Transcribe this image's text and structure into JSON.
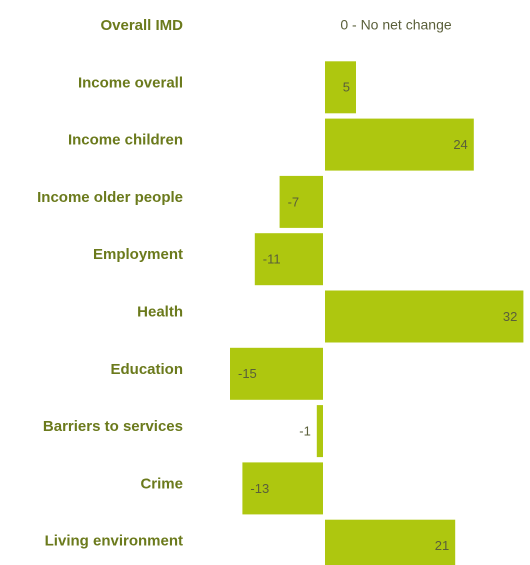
{
  "chart_data": {
    "type": "bar",
    "orientation": "horizontal",
    "categories": [
      "Overall IMD",
      "Income overall",
      "Income children",
      "Income older people",
      "Employment",
      "Health",
      "Education",
      "Barriers to services",
      "Crime",
      "Living environment"
    ],
    "values": [
      0,
      5,
      24,
      -7,
      -11,
      32,
      -15,
      -1,
      -13,
      21
    ],
    "data_labels": [
      "0 - No net change",
      "5",
      "24",
      "-7",
      "-11",
      "32",
      "-15",
      "-1",
      "-13",
      "21"
    ],
    "title": "",
    "xlabel": "",
    "ylabel": "",
    "xlim": [
      -15,
      32
    ],
    "grid": false,
    "legend": "none",
    "bar_color": "#aec70f",
    "label_color": "#6b7a1c"
  }
}
